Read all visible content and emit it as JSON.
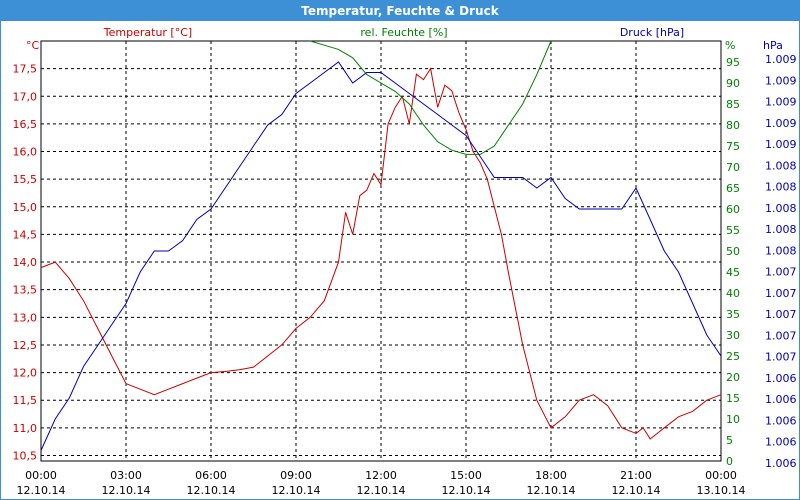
{
  "window": {
    "title": "Temperatur, Feuchte & Druck"
  },
  "colors": {
    "temperature": "#cc0000",
    "humidity": "#008000",
    "pressure": "#0000b4",
    "titlebar": "#3d8fd6",
    "grid": "#000000"
  },
  "chart_data": {
    "type": "line",
    "title": "Temperatur, Feuchte & Druck",
    "grid": true,
    "x_axis": {
      "range": [
        "12.10.14 00:00",
        "13.10.14 00:00"
      ],
      "ticks": [
        {
          "time": "00:00",
          "date": "12.10.14"
        },
        {
          "time": "03:00",
          "date": "12.10.14"
        },
        {
          "time": "06:00",
          "date": "12.10.14"
        },
        {
          "time": "09:00",
          "date": "12.10.14"
        },
        {
          "time": "12:00",
          "date": "12.10.14"
        },
        {
          "time": "15:00",
          "date": "12.10.14"
        },
        {
          "time": "18:00",
          "date": "12.10.14"
        },
        {
          "time": "21:00",
          "date": "12.10.14"
        },
        {
          "time": "00:00",
          "date": "13.10.14"
        }
      ]
    },
    "y_axes": {
      "temperature": {
        "label": "Temperatur [°C]",
        "unit": "°C",
        "ylim": [
          10.4,
          18.0
        ],
        "tick_values": [
          10.5,
          11.0,
          11.5,
          12.0,
          12.5,
          13.0,
          13.5,
          14.0,
          14.5,
          15.0,
          15.5,
          16.0,
          16.5,
          17.0,
          17.5
        ],
        "tick_labels": [
          "10,5",
          "11,0",
          "11,5",
          "12,0",
          "12,5",
          "13,0",
          "13,5",
          "14,0",
          "14,5",
          "15,0",
          "15,5",
          "16,0",
          "16,5",
          "17,0",
          "17,5"
        ]
      },
      "humidity": {
        "label": "rel. Feuchte [%]",
        "unit": "%",
        "ylim": [
          0,
          100
        ],
        "tick_values": [
          0,
          5,
          10,
          15,
          20,
          25,
          30,
          35,
          40,
          45,
          50,
          55,
          60,
          65,
          70,
          75,
          80,
          85,
          90,
          95
        ],
        "tick_labels": [
          "0",
          "5",
          "10",
          "15",
          "20",
          "25",
          "30",
          "35",
          "40",
          "45",
          "50",
          "55",
          "60",
          "65",
          "70",
          "75",
          "80",
          "85",
          "90",
          "95"
        ]
      },
      "pressure": {
        "label": "Druck [hPa]",
        "unit": "hPa",
        "ylim": [
          1005.5,
          1009.5
        ],
        "tick_labels": [
          "1.009",
          "1.009",
          "1.009",
          "1.009",
          "1.009",
          "1.008",
          "1.008",
          "1.008",
          "1.008",
          "1.008",
          "1.007",
          "1.007",
          "1.007",
          "1.007",
          "1.007",
          "1.006",
          "1.006",
          "1.006",
          "1.006",
          "1.006"
        ]
      }
    },
    "series": [
      {
        "name": "Temperatur [°C]",
        "axis": "temperature",
        "x": [
          0,
          0.5,
          1.0,
          1.5,
          2.0,
          2.5,
          3.0,
          3.5,
          4.0,
          4.5,
          5.0,
          5.5,
          6.0,
          6.5,
          7.0,
          7.5,
          8.0,
          8.5,
          9.0,
          9.5,
          10.0,
          10.5,
          10.75,
          11.0,
          11.25,
          11.5,
          11.75,
          12.0,
          12.25,
          12.5,
          12.75,
          13.0,
          13.25,
          13.5,
          13.75,
          14.0,
          14.25,
          14.5,
          14.75,
          15.0,
          15.25,
          15.5,
          15.75,
          16.0,
          16.25,
          16.5,
          17.0,
          17.5,
          18.0,
          18.5,
          19.0,
          19.5,
          20.0,
          20.5,
          21.0,
          21.25,
          21.5,
          21.75,
          22.0,
          22.5,
          23.0,
          23.5,
          24.0
        ],
        "values": [
          13.9,
          14.0,
          13.7,
          13.3,
          12.8,
          12.3,
          11.8,
          11.7,
          11.6,
          11.7,
          11.8,
          11.9,
          12.0,
          12.02,
          12.05,
          12.1,
          12.3,
          12.5,
          12.8,
          13.0,
          13.3,
          14.0,
          14.9,
          14.5,
          15.2,
          15.3,
          15.6,
          15.4,
          16.5,
          16.8,
          17.0,
          16.5,
          17.4,
          17.3,
          17.5,
          16.8,
          17.2,
          17.1,
          16.7,
          16.4,
          16.0,
          15.8,
          15.5,
          15.0,
          14.5,
          13.8,
          12.5,
          11.5,
          11.0,
          11.2,
          11.5,
          11.6,
          11.4,
          11.0,
          10.9,
          11.0,
          10.8,
          10.9,
          11.0,
          11.2,
          11.3,
          11.5,
          11.6
        ]
      },
      {
        "name": "rel. Feuchte [%]",
        "axis": "humidity",
        "x": [
          9.5,
          10.0,
          10.5,
          11.0,
          11.5,
          12.0,
          12.5,
          13.0,
          13.5,
          14.0,
          14.5,
          15.0,
          15.5,
          16.0,
          16.5,
          17.0,
          17.5,
          18.0
        ],
        "values": [
          100,
          99,
          98,
          96,
          92,
          90,
          88,
          85,
          80,
          76,
          74,
          73,
          73,
          75,
          80,
          85,
          92,
          100
        ]
      },
      {
        "name": "Druck [hPa]",
        "axis": "pressure",
        "x": [
          0,
          0.5,
          1.0,
          1.5,
          2.0,
          2.5,
          3.0,
          3.5,
          4.0,
          4.5,
          5.0,
          5.5,
          6.0,
          6.5,
          7.0,
          7.5,
          8.0,
          8.5,
          9.0,
          9.5,
          10.0,
          10.5,
          11.0,
          11.5,
          12.0,
          12.5,
          13.0,
          13.5,
          14.0,
          14.5,
          15.0,
          15.5,
          16.0,
          16.5,
          17.0,
          17.5,
          18.0,
          18.5,
          19.0,
          19.5,
          20.0,
          20.5,
          21.0,
          21.5,
          22.0,
          22.5,
          23.0,
          23.5,
          24.0
        ],
        "values": [
          1005.6,
          1005.9,
          1006.1,
          1006.4,
          1006.6,
          1006.8,
          1007.0,
          1007.3,
          1007.5,
          1007.5,
          1007.6,
          1007.8,
          1007.9,
          1008.1,
          1008.3,
          1008.5,
          1008.7,
          1008.8,
          1009.0,
          1009.1,
          1009.2,
          1009.3,
          1009.1,
          1009.2,
          1009.2,
          1009.1,
          1009.0,
          1008.9,
          1008.8,
          1008.7,
          1008.6,
          1008.4,
          1008.2,
          1008.2,
          1008.2,
          1008.1,
          1008.2,
          1008.0,
          1007.9,
          1007.9,
          1007.9,
          1007.9,
          1008.1,
          1007.8,
          1007.5,
          1007.3,
          1007.0,
          1006.7,
          1006.5
        ]
      }
    ]
  }
}
